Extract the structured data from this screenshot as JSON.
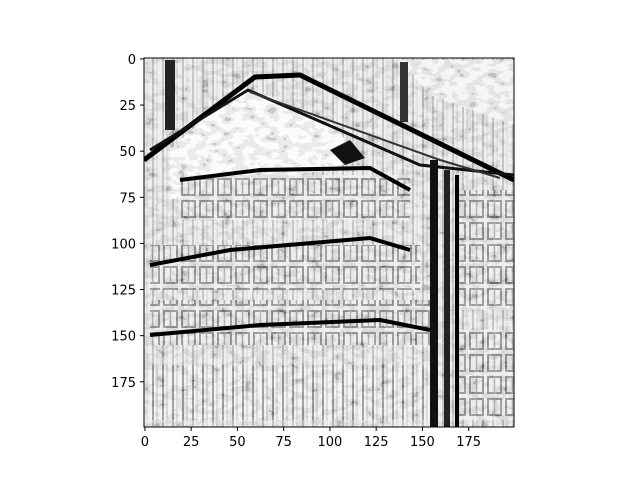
{
  "chart_data": {
    "type": "heatmap",
    "colormap": "gray",
    "image_description": "grayscale edge-detection output of a multi-storey building with pitched roof, balconies and windows",
    "x_ticks": [
      "0",
      "25",
      "50",
      "75",
      "100",
      "125",
      "150",
      "175"
    ],
    "y_ticks": [
      "0",
      "25",
      "50",
      "75",
      "100",
      "125",
      "150",
      "175"
    ],
    "xlim": [
      -0.5,
      199.5
    ],
    "ylim": [
      199.5,
      -0.5
    ],
    "grid": false,
    "legend": "none"
  },
  "colors": {
    "ink": "#000000",
    "paper": "#ffffff"
  }
}
